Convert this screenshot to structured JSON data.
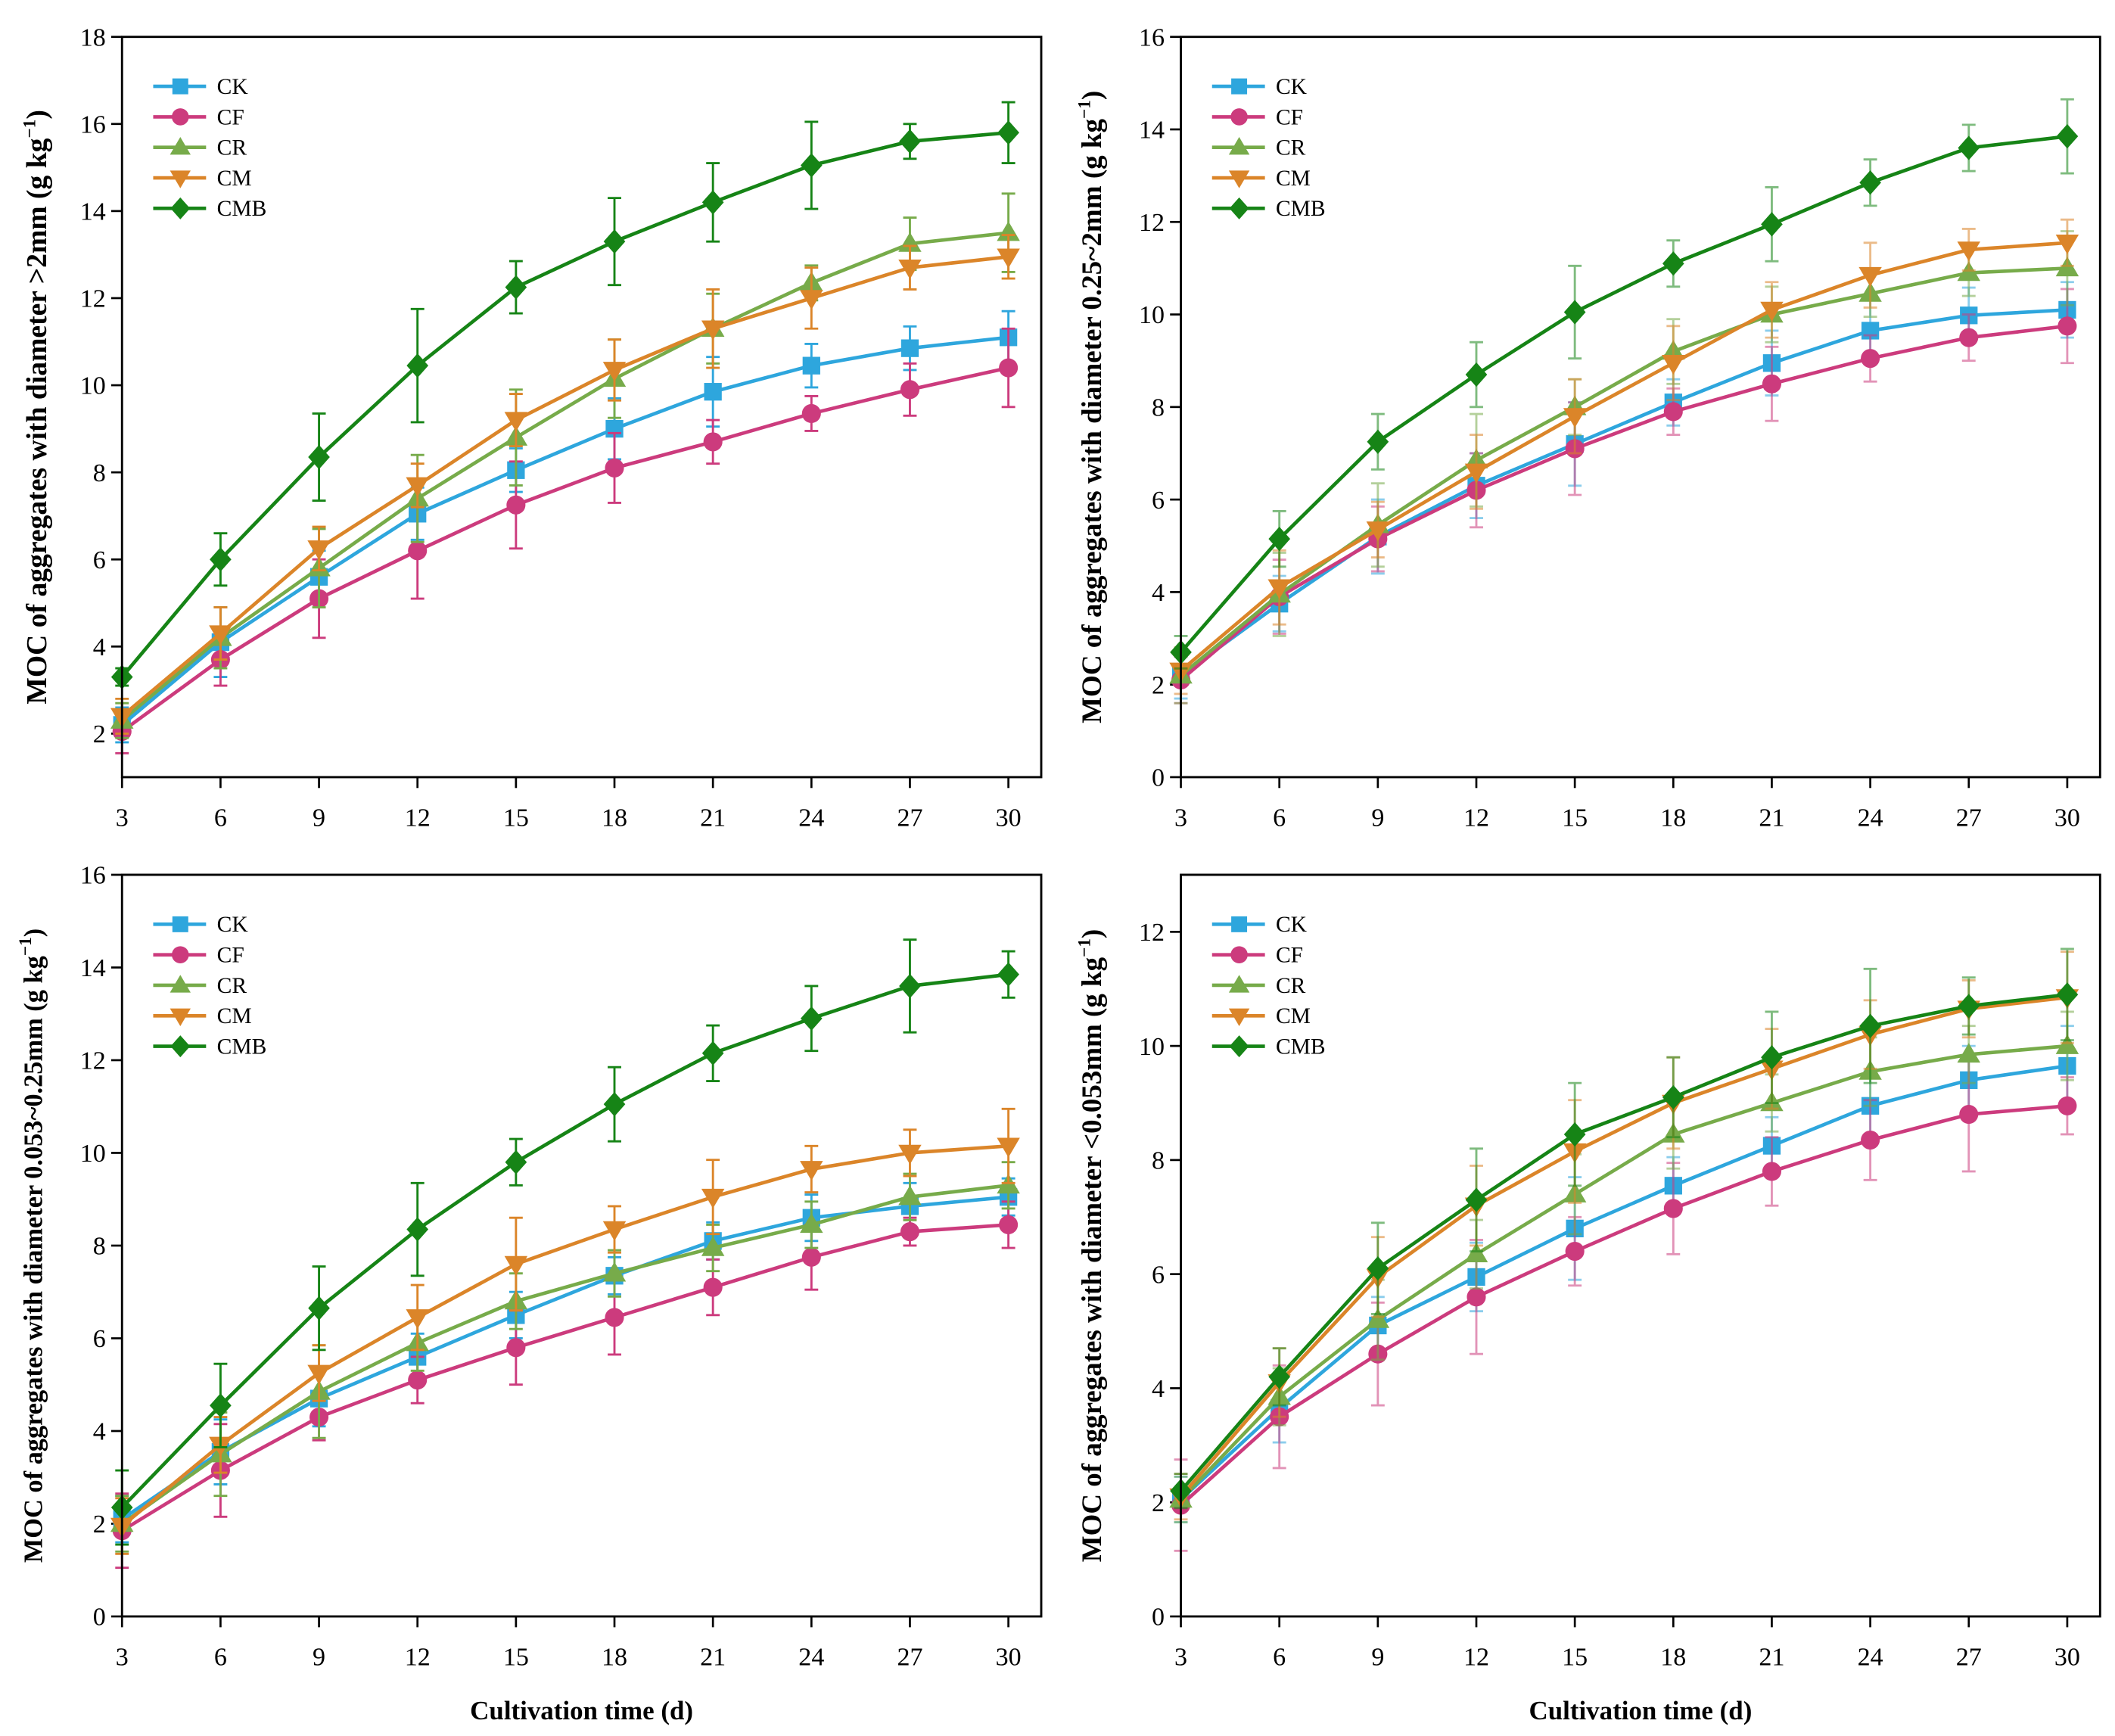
{
  "chart_data": [
    {
      "type": "line",
      "ylabel": "MOC of aggregates with diameter >2mm (g kg",
      "ylabel_sup": "−1",
      "ylabel_end": ")",
      "x": [
        3,
        6,
        9,
        12,
        15,
        18,
        21,
        24,
        27,
        30
      ],
      "xticks": [
        3,
        6,
        9,
        12,
        15,
        18,
        21,
        24,
        27,
        30
      ],
      "yticks": [
        2,
        4,
        6,
        8,
        10,
        12,
        14,
        16,
        18
      ],
      "xlim": [
        3,
        31
      ],
      "ylim": [
        1,
        18
      ],
      "legend": "upper-left",
      "series": [
        {
          "name": "CK",
          "color": "#2ea6dd",
          "marker": "square",
          "values": [
            2.2,
            4.1,
            5.6,
            7.05,
            8.05,
            9.0,
            9.85,
            10.45,
            10.85,
            11.1
          ],
          "errors": [
            0.4,
            0.8,
            0.6,
            0.6,
            0.5,
            0.7,
            0.8,
            0.5,
            0.5,
            0.6
          ]
        },
        {
          "name": "CF",
          "color": "#cc3b7d",
          "marker": "circle",
          "values": [
            2.05,
            3.7,
            5.1,
            6.2,
            7.25,
            8.1,
            8.7,
            9.35,
            9.9,
            10.4
          ],
          "errors": [
            0.5,
            0.6,
            0.9,
            1.1,
            1.0,
            0.8,
            0.5,
            0.4,
            0.6,
            0.9
          ]
        },
        {
          "name": "CR",
          "color": "#77ab4a",
          "marker": "triangle-up",
          "values": [
            2.3,
            4.2,
            5.8,
            7.4,
            8.8,
            10.15,
            11.3,
            12.35,
            13.25,
            13.5
          ],
          "errors": [
            0.4,
            0.7,
            0.9,
            1.0,
            1.1,
            0.9,
            0.8,
            0.4,
            0.6,
            0.9
          ]
        },
        {
          "name": "CM",
          "color": "#db8529",
          "marker": "triangle-down",
          "values": [
            2.4,
            4.3,
            6.25,
            7.7,
            9.2,
            10.35,
            11.3,
            12.0,
            12.7,
            12.95
          ],
          "errors": [
            0.4,
            0.6,
            0.5,
            0.5,
            0.6,
            0.7,
            0.9,
            0.7,
            0.5,
            0.5
          ]
        },
        {
          "name": "CMB",
          "color": "#168416",
          "marker": "diamond",
          "values": [
            3.3,
            6.0,
            8.35,
            10.45,
            12.25,
            13.3,
            14.2,
            15.05,
            15.6,
            15.8
          ],
          "errors": [
            0.2,
            0.6,
            1.0,
            1.3,
            0.6,
            1.0,
            0.9,
            1.0,
            0.4,
            0.7
          ]
        }
      ]
    },
    {
      "type": "line",
      "ylabel": "MOC of aggregates with diameter 0.25~2mm (g kg",
      "ylabel_sup": "−1",
      "ylabel_end": ")",
      "x": [
        3,
        6,
        9,
        12,
        15,
        18,
        21,
        24,
        27,
        30
      ],
      "xticks": [
        3,
        6,
        9,
        12,
        15,
        18,
        21,
        24,
        27,
        30
      ],
      "yticks": [
        0,
        2,
        4,
        6,
        8,
        10,
        12,
        14,
        16
      ],
      "xlim": [
        3,
        31
      ],
      "ylim": [
        0,
        16
      ],
      "legend": "upper-left",
      "series": [
        {
          "name": "CK",
          "color": "#2ea6dd",
          "marker": "square",
          "values": [
            2.2,
            3.75,
            5.2,
            6.3,
            7.2,
            8.1,
            8.95,
            9.65,
            9.98,
            10.1
          ],
          "errors": [
            0.5,
            0.6,
            0.8,
            0.7,
            0.9,
            0.5,
            0.7,
            0.7,
            0.6,
            0.6
          ]
        },
        {
          "name": "CF",
          "color": "#cc3b7d",
          "marker": "circle",
          "values": [
            2.1,
            3.9,
            5.15,
            6.2,
            7.1,
            7.9,
            8.5,
            9.05,
            9.5,
            9.75
          ],
          "errors": [
            0.5,
            0.8,
            0.7,
            0.8,
            1.0,
            0.5,
            0.8,
            0.5,
            0.5,
            0.8
          ]
        },
        {
          "name": "CR",
          "color": "#77ab4a",
          "marker": "triangle-up",
          "values": [
            2.2,
            3.95,
            5.45,
            6.85,
            8.0,
            9.2,
            10.0,
            10.45,
            10.9,
            11.0
          ],
          "errors": [
            0.6,
            0.9,
            0.9,
            1.0,
            0.6,
            0.7,
            0.6,
            0.5,
            0.5,
            0.8
          ]
        },
        {
          "name": "CM",
          "color": "#db8529",
          "marker": "triangle-down",
          "values": [
            2.3,
            4.1,
            5.35,
            6.6,
            7.8,
            8.95,
            10.1,
            10.85,
            11.4,
            11.55
          ],
          "errors": [
            0.5,
            0.8,
            0.6,
            0.8,
            0.8,
            0.8,
            0.6,
            0.7,
            0.45,
            0.5
          ]
        },
        {
          "name": "CMB",
          "color": "#168416",
          "marker": "diamond",
          "values": [
            2.7,
            5.15,
            7.25,
            8.7,
            10.05,
            11.1,
            11.95,
            12.85,
            13.6,
            13.85
          ],
          "errors": [
            0.35,
            0.6,
            0.6,
            0.7,
            1.0,
            0.5,
            0.8,
            0.5,
            0.5,
            0.8
          ]
        }
      ]
    },
    {
      "type": "line",
      "ylabel": "MOC of aggregates with diameter 0.053~0.25mm (g kg",
      "ylabel_sup": "−1",
      "ylabel_end": ")",
      "xlabel": "Cultivation time (d)",
      "x": [
        3,
        6,
        9,
        12,
        15,
        18,
        21,
        24,
        27,
        30
      ],
      "xticks": [
        3,
        6,
        9,
        12,
        15,
        18,
        21,
        24,
        27,
        30
      ],
      "yticks": [
        0,
        2,
        4,
        6,
        8,
        10,
        12,
        14,
        16
      ],
      "xlim": [
        3,
        31
      ],
      "ylim": [
        0,
        16
      ],
      "legend": "upper-left",
      "series": [
        {
          "name": "CK",
          "color": "#2ea6dd",
          "marker": "square",
          "values": [
            2.1,
            3.55,
            4.7,
            5.6,
            6.5,
            7.35,
            8.1,
            8.6,
            8.85,
            9.05
          ],
          "errors": [
            0.5,
            0.7,
            0.6,
            0.5,
            0.5,
            0.4,
            0.4,
            0.5,
            0.5,
            0.4
          ]
        },
        {
          "name": "CF",
          "color": "#cc3b7d",
          "marker": "circle",
          "values": [
            1.85,
            3.15,
            4.3,
            5.1,
            5.8,
            6.45,
            7.1,
            7.75,
            8.3,
            8.45
          ],
          "errors": [
            0.8,
            1.0,
            0.5,
            0.5,
            0.8,
            0.8,
            0.6,
            0.7,
            0.3,
            0.5
          ]
        },
        {
          "name": "CR",
          "color": "#77ab4a",
          "marker": "triangle-up",
          "values": [
            2.0,
            3.5,
            4.85,
            5.9,
            6.8,
            7.4,
            7.95,
            8.45,
            9.05,
            9.3
          ],
          "errors": [
            0.6,
            0.9,
            1.0,
            0.6,
            0.6,
            0.5,
            0.5,
            0.5,
            0.5,
            0.5
          ]
        },
        {
          "name": "CM",
          "color": "#db8529",
          "marker": "triangle-down",
          "values": [
            1.95,
            3.7,
            5.25,
            6.45,
            7.6,
            8.35,
            9.05,
            9.65,
            10.0,
            10.15
          ],
          "errors": [
            0.6,
            0.6,
            0.6,
            0.7,
            1.0,
            0.5,
            0.8,
            0.5,
            0.5,
            0.8
          ]
        },
        {
          "name": "CMB",
          "color": "#168416",
          "marker": "diamond",
          "values": [
            2.35,
            4.55,
            6.65,
            8.35,
            9.8,
            11.05,
            12.15,
            12.9,
            13.6,
            13.85
          ],
          "errors": [
            0.8,
            0.9,
            0.9,
            1.0,
            0.5,
            0.8,
            0.6,
            0.7,
            1.0,
            0.5
          ]
        }
      ]
    },
    {
      "type": "line",
      "ylabel": "MOC of aggregates with diameter <0.053mm (g kg",
      "ylabel_sup": "−1",
      "ylabel_end": ")",
      "xlabel": "Cultivation time (d)",
      "x": [
        3,
        6,
        9,
        12,
        15,
        18,
        21,
        24,
        27,
        30
      ],
      "xticks": [
        3,
        6,
        9,
        12,
        15,
        18,
        21,
        24,
        27,
        30
      ],
      "yticks": [
        0,
        2,
        4,
        6,
        8,
        10,
        12
      ],
      "xlim": [
        3,
        31
      ],
      "ylim": [
        0,
        13
      ],
      "legend": "upper-left",
      "series": [
        {
          "name": "CK",
          "color": "#2ea6dd",
          "marker": "square",
          "values": [
            2.05,
            3.65,
            5.1,
            5.95,
            6.8,
            7.55,
            8.25,
            8.95,
            9.4,
            9.65
          ],
          "errors": [
            0.4,
            0.6,
            0.5,
            0.6,
            0.9,
            0.5,
            0.5,
            0.6,
            0.6,
            0.7
          ]
        },
        {
          "name": "CF",
          "color": "#cc3b7d",
          "marker": "circle",
          "values": [
            1.95,
            3.5,
            4.6,
            5.6,
            6.4,
            7.15,
            7.8,
            8.35,
            8.8,
            8.95
          ],
          "errors": [
            0.8,
            0.9,
            0.9,
            1.0,
            0.6,
            0.8,
            0.6,
            0.7,
            1.0,
            0.5
          ]
        },
        {
          "name": "CR",
          "color": "#77ab4a",
          "marker": "triangle-up",
          "values": [
            2.05,
            3.85,
            5.2,
            6.35,
            7.4,
            8.45,
            9.0,
            9.55,
            9.85,
            10.0
          ],
          "errors": [
            0.4,
            0.5,
            0.7,
            0.6,
            0.7,
            0.6,
            0.5,
            0.6,
            0.5,
            0.6
          ]
        },
        {
          "name": "CM",
          "color": "#db8529",
          "marker": "triangle-down",
          "values": [
            2.1,
            4.1,
            5.95,
            7.2,
            8.15,
            9.0,
            9.6,
            10.2,
            10.65,
            10.85
          ],
          "errors": [
            0.4,
            0.6,
            0.7,
            0.7,
            0.9,
            0.8,
            0.7,
            0.6,
            0.5,
            0.8
          ]
        },
        {
          "name": "CMB",
          "color": "#168416",
          "marker": "diamond",
          "values": [
            2.2,
            4.2,
            6.1,
            7.3,
            8.45,
            9.1,
            9.8,
            10.35,
            10.7,
            10.9
          ],
          "errors": [
            0.3,
            0.5,
            0.8,
            0.9,
            0.9,
            0.7,
            0.8,
            1.0,
            0.5,
            0.8
          ]
        }
      ]
    }
  ]
}
